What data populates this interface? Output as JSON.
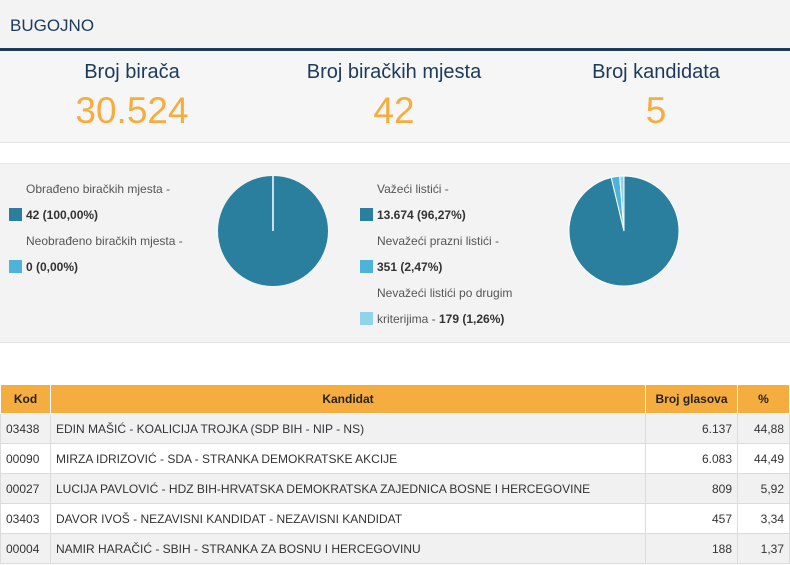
{
  "header": {
    "title": "BUGOJNO"
  },
  "stats": [
    {
      "label": "Broj birača",
      "value": "30.524"
    },
    {
      "label": "Broj biračkih mjesta",
      "value": "42"
    },
    {
      "label": "Broj kandidata",
      "value": "5"
    }
  ],
  "polling_chart": {
    "legend": [
      {
        "label": "Obrađeno biračkih mjesta - ",
        "value": "42 (100,00%)",
        "color": "#2a7f9e"
      },
      {
        "label": "Neobrađeno biračkih mjesta - ",
        "value": "0 (0,00%)",
        "color": "#4fb3d9"
      }
    ],
    "slices": [
      100.0,
      0.0
    ]
  },
  "ballot_chart": {
    "legend": [
      {
        "label": "Važeći listići - ",
        "value": "13.674 (96,27%)",
        "color": "#2a7f9e"
      },
      {
        "label": "Nevažeći prazni listići - ",
        "value": "351 (2,47%)",
        "color": "#4fb3d9"
      },
      {
        "label": "Nevažeći listići po drugim kriterijima - ",
        "value": "179 (1,26%)",
        "color": "#8fd4ea"
      }
    ],
    "slices": [
      96.27,
      2.47,
      1.26
    ]
  },
  "table": {
    "headers": [
      "Kod",
      "Kandidat",
      "Broj glasova",
      "%"
    ],
    "rows": [
      [
        "03438",
        "EDIN MAŠIĆ - KOALICIJA TROJKA (SDP BIH - NIP - NS)",
        "6.137",
        "44,88"
      ],
      [
        "00090",
        "MIRZA IDRIZOVIĆ - SDA - STRANKA DEMOKRATSKE AKCIJE",
        "6.083",
        "44,49"
      ],
      [
        "00027",
        "LUCIJA PAVLOVIĆ - HDZ BIH-HRVATSKA DEMOKRATSKA ZAJEDNICA BOSNE I HERCEGOVINE",
        "809",
        "5,92"
      ],
      [
        "03403",
        "DAVOR IVOŠ - NEZAVISNI KANDIDAT - NEZAVISNI KANDIDAT",
        "457",
        "3,34"
      ],
      [
        "00004",
        "NAMIR HARAČIĆ - SBIH - STRANKA ZA BOSNU I HERCEGOVINU",
        "188",
        "1,37"
      ]
    ]
  }
}
